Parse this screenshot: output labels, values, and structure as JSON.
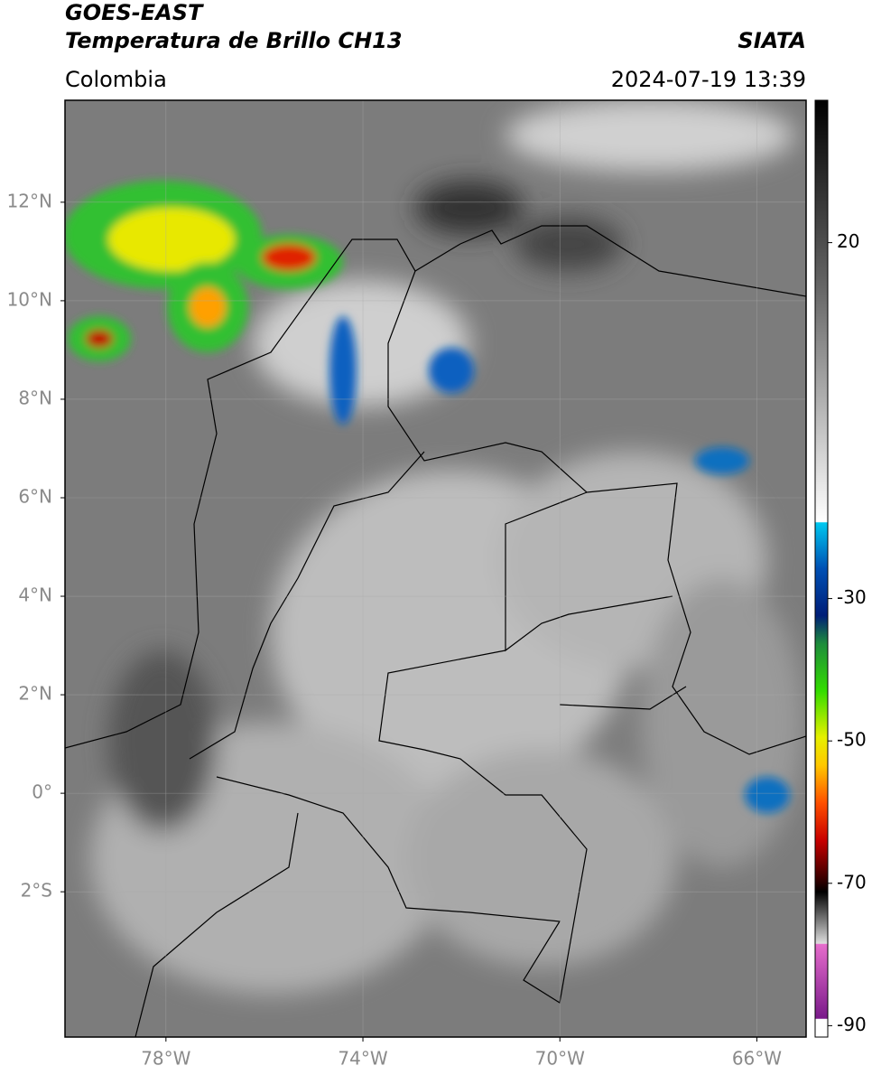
{
  "header": {
    "satellite": "GOES-EAST",
    "product": "Temperatura de Brillo CH13",
    "source": "SIATA",
    "region": "Colombia",
    "datetime": "2024-07-19 13:39"
  },
  "map": {
    "xlim": [
      -80.05,
      -65
    ],
    "ylim": [
      -4.95,
      14.07
    ],
    "xticks": [
      {
        "value": -78,
        "label": "78°W"
      },
      {
        "value": -74,
        "label": "74°W"
      },
      {
        "value": -70,
        "label": "70°W"
      },
      {
        "value": -66,
        "label": "66°W"
      }
    ],
    "yticks": [
      {
        "value": 12,
        "label": "12°N"
      },
      {
        "value": 10,
        "label": "10°N"
      },
      {
        "value": 8,
        "label": "8°N"
      },
      {
        "value": 6,
        "label": "6°N"
      },
      {
        "value": 4,
        "label": "4°N"
      },
      {
        "value": 2,
        "label": "2°N"
      },
      {
        "value": 0,
        "label": "0°"
      },
      {
        "value": -2,
        "label": "2°S"
      }
    ]
  },
  "colorbar": {
    "ylim": [
      -91.6,
      40
    ],
    "ticks": [
      20,
      -30,
      -50,
      -70,
      -90
    ]
  }
}
